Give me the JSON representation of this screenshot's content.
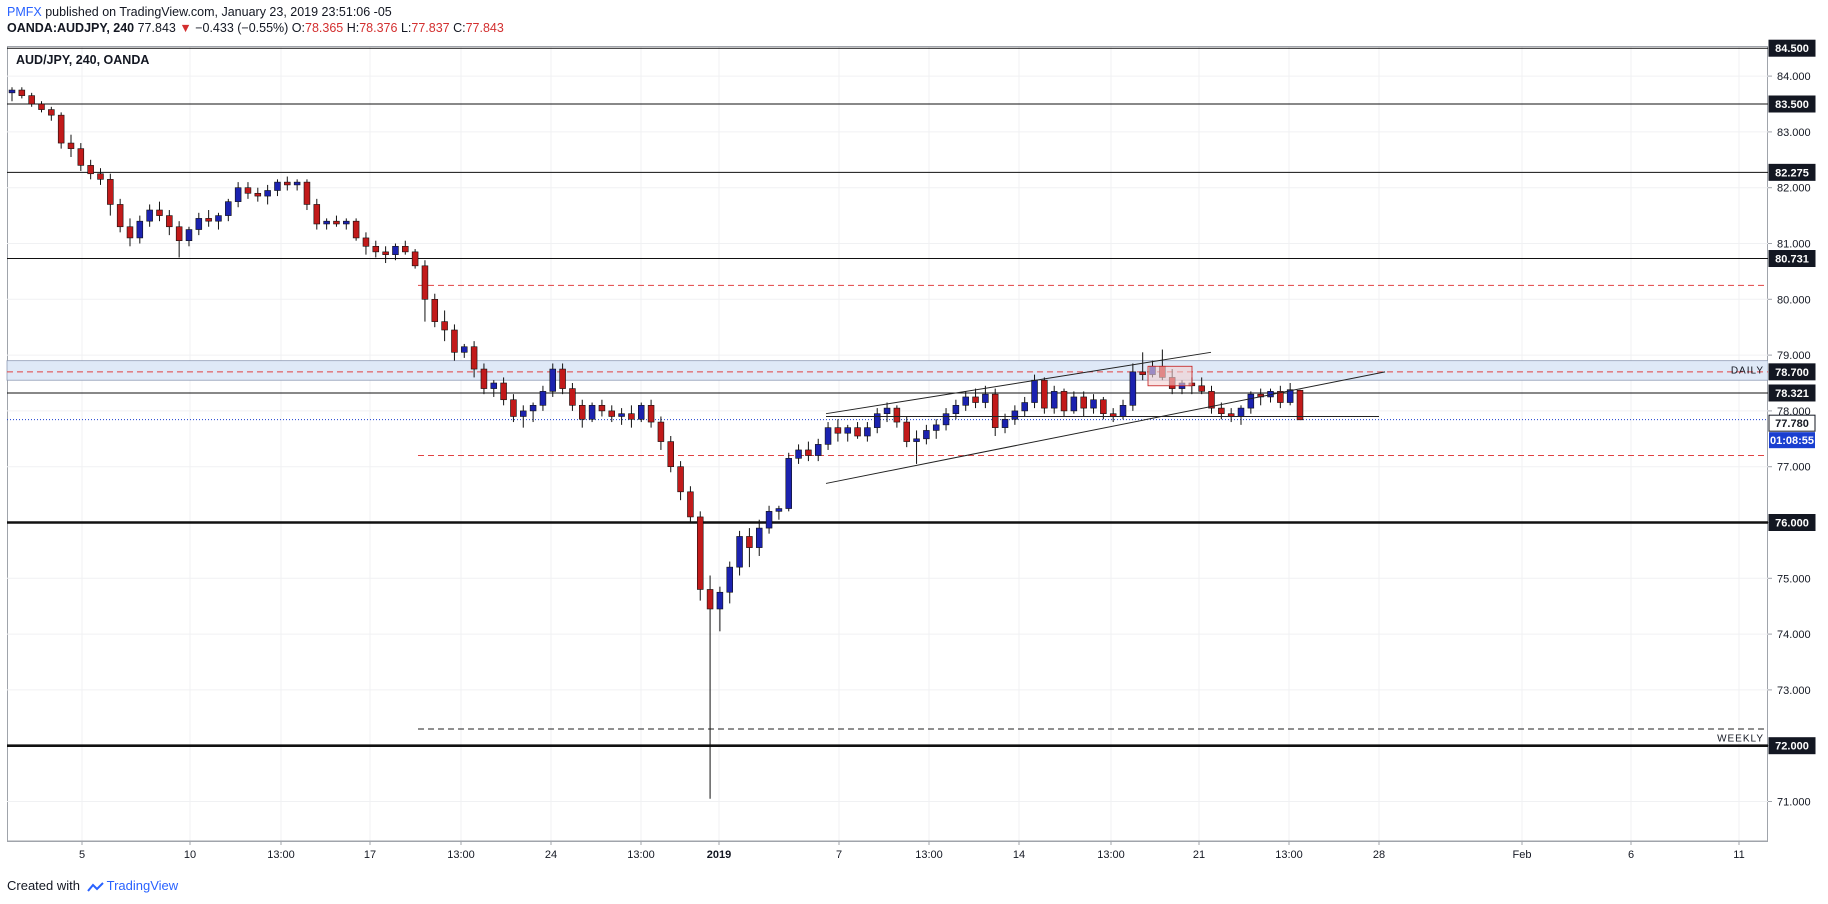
{
  "header": {
    "brand": "PMFX",
    "published_text": " published on TradingView.com, January 23, 2019 23:51:06 -05",
    "symbol": "OANDA:AUDJPY, 240",
    "last": "77.843",
    "change_arrow": "▼",
    "change": "−0.433 (−0.55%)",
    "o_label": "O:",
    "o_value": "78.365",
    "h_label": "H:",
    "h_value": "78.376",
    "l_label": "L:",
    "l_value": "77.837",
    "c_label": "C:",
    "c_value": "77.843"
  },
  "chart_title": "AUD/JPY, 240, OANDA",
  "footer": {
    "created_with": "Created with",
    "brand": "TradingView"
  },
  "colors": {
    "bull": "#1b22b0",
    "bear": "#c21a1a",
    "axis_text": "#131722",
    "dashed_red": "#e24343"
  },
  "chart_data": {
    "type": "candlestick",
    "title": "AUD/JPY, 240, OANDA",
    "ylim": [
      70.3,
      84.7
    ],
    "y_ticks": [
      71.0,
      72.0,
      73.0,
      74.0,
      75.0,
      76.0,
      77.0,
      78.0,
      79.0,
      80.0,
      81.0,
      82.0,
      83.0,
      84.0
    ],
    "x_ticks": [
      "5",
      "10",
      "13:00",
      "17",
      "13:00",
      "24",
      "13:00",
      "2019",
      "7",
      "13:00",
      "14",
      "13:00",
      "21",
      "13:00",
      "28",
      "Feb",
      "6",
      "11"
    ],
    "price_labels": [
      {
        "value": 84.5,
        "label": "84.500"
      },
      {
        "value": 83.5,
        "label": "83.500"
      },
      {
        "value": 82.275,
        "label": "82.275"
      },
      {
        "value": 80.731,
        "label": "80.731"
      },
      {
        "value": 78.7,
        "label": "78.700"
      },
      {
        "value": 78.321,
        "label": "78.321"
      },
      {
        "value": 77.78,
        "label": "77.780"
      },
      {
        "value": 76.0,
        "label": "76.000"
      },
      {
        "value": 72.0,
        "label": "72.000"
      }
    ],
    "countdown": "01:08:55",
    "horizontal_levels": [
      {
        "value": 84.5,
        "style": "solid"
      },
      {
        "value": 83.5,
        "style": "solid"
      },
      {
        "value": 82.275,
        "style": "solid"
      },
      {
        "value": 80.731,
        "style": "solid"
      },
      {
        "value": 78.321,
        "style": "solid"
      },
      {
        "value": 76.0,
        "style": "thick"
      },
      {
        "value": 72.0,
        "style": "thick"
      }
    ],
    "dashed_levels": [
      80.25,
      78.7,
      77.2
    ],
    "weekly_level": 72.3,
    "daily_zone": [
      78.55,
      78.9
    ],
    "zone_labels": {
      "daily": "DAILY",
      "weekly": "WEEKLY"
    },
    "current_price_line": 77.843,
    "channel_lines": [
      {
        "from": [
          "Jan 7",
          77.9
        ],
        "to": [
          "Jan 28",
          77.9
        ]
      },
      {
        "from": [
          "Jan 7",
          77.95
        ],
        "to": [
          "Jan 20",
          79.05
        ]
      },
      {
        "from": [
          "Jan 7",
          76.7
        ],
        "to": [
          "Jan 28",
          78.7
        ]
      }
    ],
    "ohlc_source": "approximate candle series (open, high, low, close) read from the chart",
    "candles": [
      [
        83.7,
        83.8,
        83.55,
        83.75
      ],
      [
        83.75,
        83.8,
        83.6,
        83.65
      ],
      [
        83.65,
        83.7,
        83.45,
        83.5
      ],
      [
        83.5,
        83.55,
        83.35,
        83.4
      ],
      [
        83.4,
        83.45,
        83.2,
        83.3
      ],
      [
        83.3,
        83.35,
        82.7,
        82.8
      ],
      [
        82.8,
        82.95,
        82.55,
        82.7
      ],
      [
        82.7,
        82.8,
        82.3,
        82.4
      ],
      [
        82.4,
        82.5,
        82.15,
        82.25
      ],
      [
        82.25,
        82.35,
        82.05,
        82.15
      ],
      [
        82.15,
        82.25,
        81.5,
        81.7
      ],
      [
        81.7,
        81.8,
        81.2,
        81.3
      ],
      [
        81.3,
        81.45,
        80.95,
        81.1
      ],
      [
        81.1,
        81.5,
        81.0,
        81.4
      ],
      [
        81.4,
        81.7,
        81.3,
        81.6
      ],
      [
        81.6,
        81.75,
        81.4,
        81.5
      ],
      [
        81.5,
        81.6,
        81.15,
        81.3
      ],
      [
        81.3,
        81.4,
        80.75,
        81.05
      ],
      [
        81.05,
        81.3,
        80.95,
        81.25
      ],
      [
        81.25,
        81.55,
        81.15,
        81.45
      ],
      [
        81.45,
        81.6,
        81.3,
        81.4
      ],
      [
        81.4,
        81.55,
        81.25,
        81.5
      ],
      [
        81.5,
        81.8,
        81.4,
        81.75
      ],
      [
        81.75,
        82.1,
        81.65,
        82.0
      ],
      [
        82.0,
        82.1,
        81.8,
        81.9
      ],
      [
        81.9,
        82.0,
        81.75,
        81.85
      ],
      [
        81.85,
        82.05,
        81.7,
        81.95
      ],
      [
        81.95,
        82.15,
        81.85,
        82.1
      ],
      [
        82.1,
        82.2,
        81.95,
        82.05
      ],
      [
        82.05,
        82.15,
        81.95,
        82.1
      ],
      [
        82.1,
        82.15,
        81.6,
        81.7
      ],
      [
        81.7,
        81.8,
        81.25,
        81.35
      ],
      [
        81.35,
        81.45,
        81.25,
        81.4
      ],
      [
        81.4,
        81.5,
        81.3,
        81.35
      ],
      [
        81.35,
        81.45,
        81.25,
        81.4
      ],
      [
        81.4,
        81.45,
        81.05,
        81.1
      ],
      [
        81.1,
        81.2,
        80.8,
        80.95
      ],
      [
        80.95,
        81.05,
        80.75,
        80.85
      ],
      [
        80.85,
        80.95,
        80.65,
        80.8
      ],
      [
        80.8,
        81.0,
        80.7,
        80.95
      ],
      [
        80.95,
        81.05,
        80.8,
        80.85
      ],
      [
        80.85,
        80.9,
        80.55,
        80.6
      ],
      [
        80.6,
        80.7,
        79.6,
        80.0
      ],
      [
        80.0,
        80.1,
        79.5,
        79.6
      ],
      [
        79.6,
        79.8,
        79.25,
        79.45
      ],
      [
        79.45,
        79.55,
        78.9,
        79.05
      ],
      [
        79.05,
        79.2,
        78.95,
        79.15
      ],
      [
        79.15,
        79.25,
        78.6,
        78.75
      ],
      [
        78.75,
        78.85,
        78.3,
        78.4
      ],
      [
        78.4,
        78.55,
        78.25,
        78.5
      ],
      [
        78.5,
        78.6,
        78.1,
        78.2
      ],
      [
        78.2,
        78.3,
        77.8,
        77.9
      ],
      [
        77.9,
        78.1,
        77.7,
        78.0
      ],
      [
        78.0,
        78.15,
        77.8,
        78.1
      ],
      [
        78.1,
        78.45,
        78.0,
        78.35
      ],
      [
        78.35,
        78.85,
        78.25,
        78.75
      ],
      [
        78.75,
        78.85,
        78.3,
        78.4
      ],
      [
        78.4,
        78.5,
        78.0,
        78.1
      ],
      [
        78.1,
        78.2,
        77.7,
        77.85
      ],
      [
        77.85,
        78.15,
        77.8,
        78.1
      ],
      [
        78.1,
        78.2,
        77.9,
        78.0
      ],
      [
        78.0,
        78.1,
        77.8,
        77.9
      ],
      [
        77.9,
        78.05,
        77.75,
        77.95
      ],
      [
        77.95,
        78.1,
        77.7,
        77.85
      ],
      [
        77.85,
        78.15,
        77.8,
        78.1
      ],
      [
        78.1,
        78.2,
        77.7,
        77.8
      ],
      [
        77.8,
        77.9,
        77.3,
        77.45
      ],
      [
        77.45,
        77.55,
        76.9,
        77.0
      ],
      [
        77.0,
        77.1,
        76.4,
        76.55
      ],
      [
        76.55,
        76.65,
        76.0,
        76.1
      ],
      [
        76.1,
        76.2,
        74.6,
        74.8
      ],
      [
        74.8,
        75.05,
        71.05,
        74.45
      ],
      [
        74.45,
        74.85,
        74.05,
        74.75
      ],
      [
        74.75,
        75.3,
        74.55,
        75.2
      ],
      [
        75.2,
        75.85,
        75.05,
        75.75
      ],
      [
        75.75,
        75.9,
        75.2,
        75.55
      ],
      [
        75.55,
        76.05,
        75.4,
        75.9
      ],
      [
        75.9,
        76.3,
        75.8,
        76.2
      ],
      [
        76.2,
        76.3,
        76.05,
        76.25
      ],
      [
        76.25,
        77.25,
        76.2,
        77.15
      ],
      [
        77.15,
        77.4,
        77.05,
        77.3
      ],
      [
        77.3,
        77.45,
        77.1,
        77.2
      ],
      [
        77.2,
        77.5,
        77.1,
        77.4
      ],
      [
        77.4,
        77.8,
        77.3,
        77.7
      ],
      [
        77.7,
        77.85,
        77.45,
        77.6
      ],
      [
        77.6,
        77.75,
        77.45,
        77.7
      ],
      [
        77.7,
        77.8,
        77.5,
        77.55
      ],
      [
        77.55,
        77.8,
        77.45,
        77.7
      ],
      [
        77.7,
        78.05,
        77.6,
        77.95
      ],
      [
        77.95,
        78.15,
        77.8,
        78.05
      ],
      [
        78.05,
        78.1,
        77.7,
        77.8
      ],
      [
        77.8,
        77.9,
        77.35,
        77.45
      ],
      [
        77.45,
        77.65,
        77.05,
        77.5
      ],
      [
        77.5,
        77.75,
        77.4,
        77.65
      ],
      [
        77.65,
        77.85,
        77.5,
        77.75
      ],
      [
        77.75,
        78.05,
        77.65,
        77.95
      ],
      [
        77.95,
        78.2,
        77.85,
        78.1
      ],
      [
        78.1,
        78.35,
        78.0,
        78.25
      ],
      [
        78.25,
        78.4,
        78.05,
        78.15
      ],
      [
        78.15,
        78.45,
        78.05,
        78.3
      ],
      [
        78.3,
        78.4,
        77.55,
        77.7
      ],
      [
        77.7,
        77.95,
        77.6,
        77.85
      ],
      [
        77.85,
        78.1,
        77.75,
        78.0
      ],
      [
        78.0,
        78.25,
        77.9,
        78.15
      ],
      [
        78.15,
        78.65,
        78.05,
        78.55
      ],
      [
        78.55,
        78.6,
        77.95,
        78.05
      ],
      [
        78.05,
        78.45,
        77.95,
        78.35
      ],
      [
        78.35,
        78.4,
        77.9,
        78.0
      ],
      [
        78.0,
        78.35,
        77.95,
        78.25
      ],
      [
        78.25,
        78.35,
        77.9,
        78.05
      ],
      [
        78.05,
        78.3,
        77.95,
        78.2
      ],
      [
        78.2,
        78.25,
        77.85,
        77.95
      ],
      [
        77.95,
        78.05,
        77.8,
        77.9
      ],
      [
        77.9,
        78.2,
        77.85,
        78.1
      ],
      [
        78.1,
        78.85,
        78.0,
        78.7
      ],
      [
        78.7,
        79.05,
        78.55,
        78.65
      ],
      [
        78.65,
        78.9,
        78.6,
        78.8
      ],
      [
        78.8,
        79.1,
        78.55,
        78.6
      ],
      [
        78.6,
        78.75,
        78.3,
        78.4
      ],
      [
        78.4,
        78.55,
        78.3,
        78.5
      ],
      [
        78.5,
        78.6,
        78.3,
        78.45
      ],
      [
        78.45,
        78.6,
        78.3,
        78.35
      ],
      [
        78.35,
        78.45,
        77.95,
        78.05
      ],
      [
        78.05,
        78.15,
        77.85,
        77.95
      ],
      [
        77.95,
        78.05,
        77.8,
        77.9
      ],
      [
        77.9,
        78.1,
        77.75,
        78.05
      ],
      [
        78.05,
        78.35,
        77.95,
        78.3
      ],
      [
        78.3,
        78.4,
        78.1,
        78.25
      ],
      [
        78.25,
        78.4,
        78.15,
        78.35
      ],
      [
        78.35,
        78.45,
        78.05,
        78.15
      ],
      [
        78.15,
        78.5,
        78.1,
        78.38
      ],
      [
        78.37,
        78.38,
        77.84,
        77.84
      ]
    ]
  }
}
